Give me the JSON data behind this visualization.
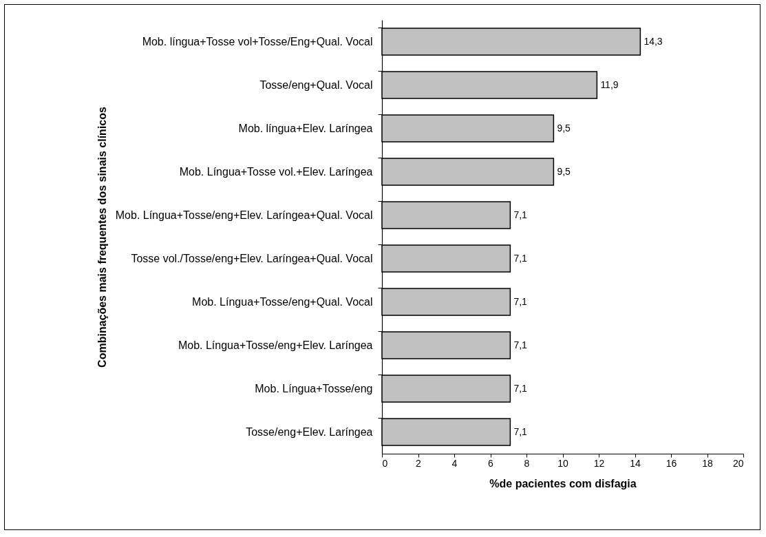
{
  "chart_data": {
    "type": "bar",
    "orientation": "horizontal",
    "categories": [
      "Mob. língua+Tosse vol+Tosse/Eng+Qual. Vocal",
      "Tosse/eng+Qual. Vocal",
      "Mob. língua+Elev. Laríngea",
      "Mob. Língua+Tosse vol.+Elev. Laríngea",
      "Mob. Língua+Tosse/eng+Elev. Laríngea+Qual. Vocal",
      "Tosse vol./Tosse/eng+Elev. Laríngea+Qual. Vocal",
      "Mob. Língua+Tosse/eng+Qual. Vocal",
      "Mob. Língua+Tosse/eng+Elev. Laríngea",
      "Mob. Língua+Tosse/eng",
      "Tosse/eng+Elev. Laríngea"
    ],
    "values": [
      14.3,
      11.9,
      9.5,
      9.5,
      7.1,
      7.1,
      7.1,
      7.1,
      7.1,
      7.1
    ],
    "value_labels": [
      "14,3",
      "11,9",
      "9,5",
      "9,5",
      "7,1",
      "7,1",
      "7,1",
      "7,1",
      "7,1",
      "7,1"
    ],
    "color": "#c0c0c0",
    "xlim": [
      0,
      20
    ],
    "xticks": [
      0,
      2,
      4,
      6,
      8,
      10,
      12,
      14,
      16,
      18,
      20
    ],
    "xlabel": "%de pacientes com disfagia",
    "ylabel": "Combinações mais frequentes dos sinais clínicos",
    "grid": false,
    "legend": false
  }
}
